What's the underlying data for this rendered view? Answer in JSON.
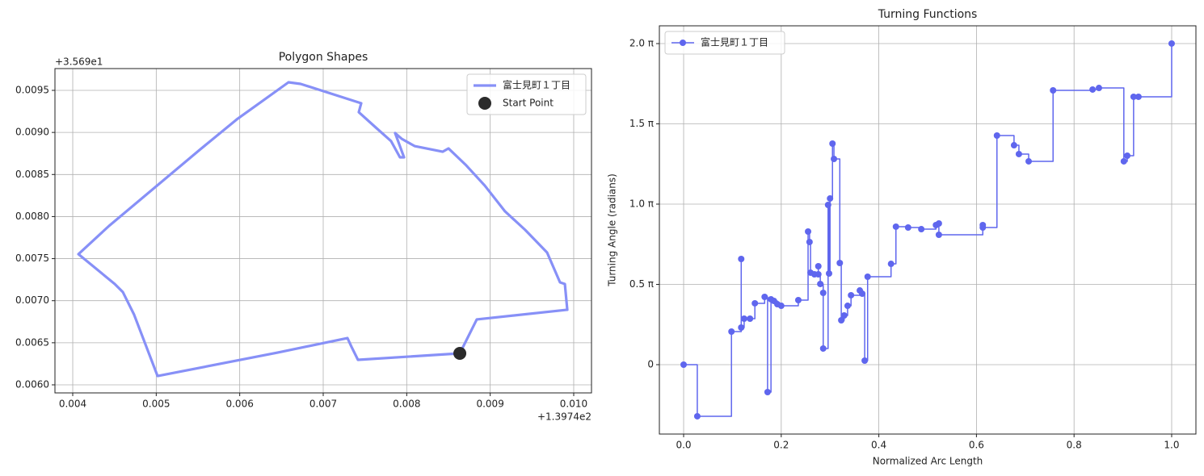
{
  "chart_data": [
    {
      "type": "line",
      "title": "Polygon Shapes",
      "x_offset_label": "+1.3974e2",
      "y_offset_label": "+3.569e1",
      "xlim": [
        0.003787,
        0.010213
      ],
      "ylim": [
        0.005904,
        0.009759
      ],
      "xticks": [
        0.004,
        0.005,
        0.006,
        0.007,
        0.008,
        0.009,
        {
          "value": 0.01,
          "label": "0.010"
        }
      ],
      "yticks": [
        {
          "value": 0.006,
          "label": "0.0060"
        },
        0.0065,
        {
          "value": 0.007,
          "label": "0.0070"
        },
        0.0075,
        {
          "value": 0.008,
          "label": "0.0080"
        },
        0.0085,
        {
          "value": 0.009,
          "label": "0.0090"
        },
        0.0095
      ],
      "grid": true,
      "legend": "upper right",
      "series": [
        {
          "name": "富士見町１丁目",
          "color": "#8790f7",
          "line": true,
          "markers": false,
          "x": [
            0.008636,
            0.008839,
            0.009923,
            0.009894,
            0.009836,
            0.009681,
            0.009419,
            0.009177,
            0.008935,
            0.008713,
            0.0085,
            0.008432,
            0.008094,
            0.007939,
            0.007861,
            0.007968,
            0.007919,
            0.007813,
            0.007629,
            0.007426,
            0.007455,
            0.006729,
            0.006584,
            0.005965,
            0.005529,
            0.004435,
            0.004068,
            0.004503,
            0.0046,
            0.004735,
            0.005016,
            0.006458,
            0.00729,
            0.007339,
            0.007416,
            0.008636
          ],
          "values": [
            0.006374,
            0.006777,
            0.006892,
            0.007199,
            0.007218,
            0.007573,
            0.007841,
            0.008062,
            0.008368,
            0.008608,
            0.00881,
            0.008771,
            0.008838,
            0.008925,
            0.008992,
            0.008704,
            0.008704,
            0.008896,
            0.009059,
            0.009241,
            0.009347,
            0.009577,
            0.009596,
            0.009155,
            0.0088,
            0.007889,
            0.007553,
            0.007199,
            0.007103,
            0.006834,
            0.006105,
            0.006384,
            0.006556,
            0.006451,
            0.006297,
            0.006374
          ]
        },
        {
          "name": "Start Point",
          "color": "#2b2b2b",
          "line": false,
          "markers": true,
          "x": [
            0.008636
          ],
          "values": [
            0.006374
          ]
        }
      ]
    },
    {
      "type": "line",
      "title": "Turning Functions",
      "step": "post",
      "x_label": "Normalized Arc Length",
      "y_label": "Turning Angle (radians)",
      "xlim": [
        -0.0497,
        1.0497
      ],
      "ylim": [
        -1.358,
        6.631
      ],
      "xticks": [
        {
          "value": 0,
          "label": "0.0"
        },
        0.2,
        0.4,
        0.6,
        0.8,
        {
          "value": 1,
          "label": "1.0"
        }
      ],
      "yticks": [
        0,
        {
          "value": 1.5708,
          "label": "0.5 π"
        },
        {
          "value": 3.1416,
          "label": "1.0 π"
        },
        {
          "value": 4.7124,
          "label": "1.5 π"
        },
        {
          "value": 6.2832,
          "label": "2.0 π"
        }
      ],
      "grid": true,
      "legend": "upper left",
      "x": [
        0,
        0.028,
        0.098,
        0.118,
        0.118,
        0.124,
        0.136,
        0.146,
        0.166,
        0.172,
        0.179,
        0.185,
        0.192,
        0.2,
        0.235,
        0.255,
        0.258,
        0.26,
        0.268,
        0.276,
        0.276,
        0.28,
        0.286,
        0.286,
        0.296,
        0.298,
        0.3,
        0.305,
        0.308,
        0.32,
        0.323,
        0.329,
        0.336,
        0.343,
        0.361,
        0.366,
        0.371,
        0.377,
        0.425,
        0.435,
        0.46,
        0.487,
        0.517,
        0.523,
        0.523,
        0.613,
        0.613,
        0.642,
        0.677,
        0.687,
        0.707,
        0.757,
        0.838,
        0.851,
        0.902,
        0.909,
        0.922,
        0.932,
        1
      ],
      "series": [
        {
          "name": "富士見町１丁目",
          "color": "#5f66ee",
          "line": true,
          "markers": true,
          "values": [
            0,
            -1.01,
            0.647,
            2.068,
            0.726,
            0.9,
            0.9,
            1.2,
            1.326,
            -0.537,
            1.279,
            1.247,
            1.184,
            1.152,
            1.263,
            2.605,
            2.4,
            1.8,
            1.768,
            1.926,
            1.768,
            1.579,
            1.405,
            0.316,
            3.126,
            1.784,
            3.252,
            4.326,
            4.026,
            1.989,
            0.868,
            0.963,
            1.152,
            1.358,
            1.452,
            1.389,
            0.079,
            1.721,
            1.973,
            2.7,
            2.684,
            2.652,
            2.731,
            2.763,
            2.542,
            2.731,
            2.684,
            4.484,
            4.294,
            4.121,
            3.979,
            5.368,
            5.384,
            5.415,
            3.979,
            4.089,
            5.242,
            5.242,
            6.284
          ]
        }
      ]
    }
  ]
}
